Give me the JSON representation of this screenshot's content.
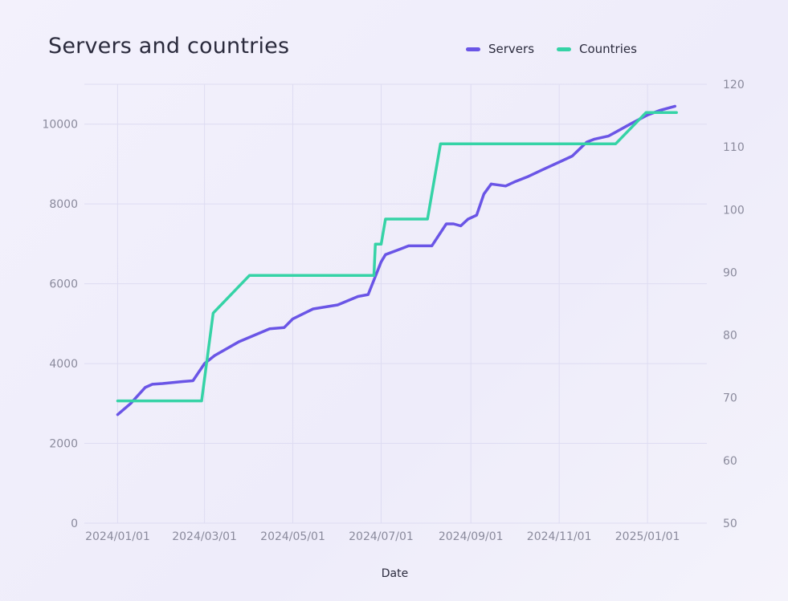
{
  "title": "Servers and countries",
  "colors": {
    "servers": "#6a55e6",
    "countries": "#35d3a6",
    "grid": "#dedcf2",
    "axis_text": "#8a8a9c"
  },
  "chart_data": {
    "type": "line",
    "xlabel": "Date",
    "x_ticks": [
      "2024/01/01",
      "2024/03/01",
      "2024/05/01",
      "2024/07/01",
      "2024/09/01",
      "2024/11/01",
      "2025/01/01"
    ],
    "y_left": {
      "lim": [
        0,
        11000
      ],
      "ticks": [
        0,
        2000,
        4000,
        6000,
        8000,
        10000
      ]
    },
    "y_right": {
      "lim": [
        50,
        120
      ],
      "ticks": [
        50,
        60,
        70,
        80,
        90,
        100,
        110,
        120
      ]
    },
    "series": [
      {
        "name": "Servers",
        "axis": "left",
        "color": "#6a55e6",
        "points": [
          [
            "2024-01-01",
            2720
          ],
          [
            "2024-01-10",
            3000
          ],
          [
            "2024-01-20",
            3400
          ],
          [
            "2024-01-25",
            3480
          ],
          [
            "2024-02-01",
            3500
          ],
          [
            "2024-02-15",
            3550
          ],
          [
            "2024-02-22",
            3570
          ],
          [
            "2024-03-01",
            4000
          ],
          [
            "2024-03-08",
            4200
          ],
          [
            "2024-03-25",
            4550
          ],
          [
            "2024-04-15",
            4870
          ],
          [
            "2024-04-25",
            4900
          ],
          [
            "2024-05-01",
            5120
          ],
          [
            "2024-05-15",
            5370
          ],
          [
            "2024-06-01",
            5470
          ],
          [
            "2024-06-15",
            5680
          ],
          [
            "2024-06-22",
            5730
          ],
          [
            "2024-07-01",
            6550
          ],
          [
            "2024-07-04",
            6730
          ],
          [
            "2024-07-15",
            6880
          ],
          [
            "2024-07-20",
            6950
          ],
          [
            "2024-08-05",
            6950
          ],
          [
            "2024-08-15",
            7500
          ],
          [
            "2024-08-20",
            7500
          ],
          [
            "2024-08-25",
            7450
          ],
          [
            "2024-08-30",
            7620
          ],
          [
            "2024-09-05",
            7720
          ],
          [
            "2024-09-10",
            8250
          ],
          [
            "2024-09-15",
            8500
          ],
          [
            "2024-09-25",
            8450
          ],
          [
            "2024-10-01",
            8550
          ],
          [
            "2024-10-10",
            8680
          ],
          [
            "2024-10-20",
            8850
          ],
          [
            "2024-11-01",
            9050
          ],
          [
            "2024-11-10",
            9200
          ],
          [
            "2024-11-20",
            9550
          ],
          [
            "2024-11-25",
            9620
          ],
          [
            "2024-12-05",
            9700
          ],
          [
            "2024-12-20",
            10000
          ],
          [
            "2025-01-01",
            10230
          ],
          [
            "2025-01-10",
            10350
          ],
          [
            "2025-01-20",
            10450
          ]
        ]
      },
      {
        "name": "Countries",
        "axis": "right",
        "color": "#35d3a6",
        "points": [
          [
            "2024-01-01",
            69.5
          ],
          [
            "2024-02-28",
            69.5
          ],
          [
            "2024-03-07",
            83.5
          ],
          [
            "2024-04-01",
            89.5
          ],
          [
            "2024-06-26",
            89.5
          ],
          [
            "2024-06-27",
            94.5
          ],
          [
            "2024-06-28",
            94.5
          ],
          [
            "2024-07-01",
            94.5
          ],
          [
            "2024-07-04",
            98.5
          ],
          [
            "2024-08-02",
            98.5
          ],
          [
            "2024-08-11",
            110.5
          ],
          [
            "2024-12-10",
            110.5
          ],
          [
            "2024-12-31",
            115.5
          ],
          [
            "2025-01-21",
            115.5
          ]
        ]
      }
    ]
  }
}
